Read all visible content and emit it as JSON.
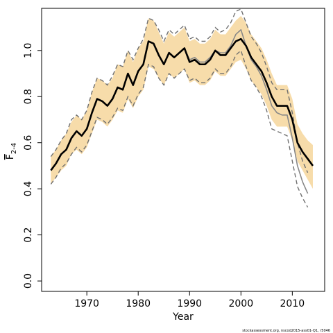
{
  "chart_data": {
    "type": "line",
    "x_label": "Year",
    "y_label": {
      "symbol": "F",
      "subscript": "2-4"
    },
    "footer": "stockassessment.org, nscod2015-ass01-Q1, r5046",
    "x": [
      1963,
      1964,
      1965,
      1966,
      1967,
      1968,
      1969,
      1970,
      1971,
      1972,
      1973,
      1974,
      1975,
      1976,
      1977,
      1978,
      1979,
      1980,
      1981,
      1982,
      1983,
      1984,
      1985,
      1986,
      1987,
      1988,
      1989,
      1990,
      1991,
      1992,
      1993,
      1994,
      1995,
      1996,
      1997,
      1998,
      1999,
      2000,
      2001,
      2002,
      2003,
      2004,
      2005,
      2006,
      2007,
      2008,
      2009,
      2010,
      2011,
      2012,
      2013,
      2014
    ],
    "xlim": [
      1961.2,
      2016.3
    ],
    "xticks": [
      1970,
      1980,
      1990,
      2000,
      2010
    ],
    "ylim": [
      -0.045,
      1.183
    ],
    "yticks": [
      {
        "value": 0,
        "label": "0.0"
      },
      0.2,
      0.4,
      0.6,
      0.8,
      {
        "value": 1,
        "label": "1.0"
      }
    ],
    "series": [
      {
        "color": "#000000",
        "band_color": "#f7dcaa",
        "values": [
          0.48,
          0.51,
          0.55,
          0.57,
          0.62,
          0.65,
          0.63,
          0.66,
          0.73,
          0.79,
          0.78,
          0.76,
          0.79,
          0.84,
          0.83,
          0.9,
          0.85,
          0.91,
          0.94,
          1.04,
          1.03,
          0.98,
          0.94,
          0.99,
          0.97,
          0.99,
          1.01,
          0.95,
          0.96,
          0.94,
          0.94,
          0.96,
          1.0,
          0.98,
          0.98,
          1.01,
          1.04,
          1.05,
          1.02,
          0.97,
          0.94,
          0.91,
          0.86,
          0.8,
          0.76,
          0.76,
          0.76,
          0.7,
          0.6,
          0.56,
          0.53,
          0.5
        ],
        "upper": [
          0.54,
          0.57,
          0.61,
          0.64,
          0.69,
          0.72,
          0.7,
          0.74,
          0.82,
          0.88,
          0.87,
          0.85,
          0.88,
          0.94,
          0.93,
          1.0,
          0.95,
          1.01,
          1.04,
          1.14,
          1.13,
          1.08,
          1.03,
          1.08,
          1.06,
          1.08,
          1.1,
          1.04,
          1.05,
          1.03,
          1.03,
          1.05,
          1.09,
          1.07,
          1.07,
          1.1,
          1.13,
          1.15,
          1.12,
          1.07,
          1.04,
          1.01,
          0.96,
          0.9,
          0.85,
          0.85,
          0.85,
          0.79,
          0.68,
          0.64,
          0.61,
          0.59
        ],
        "lower": [
          0.42,
          0.45,
          0.48,
          0.5,
          0.55,
          0.57,
          0.55,
          0.58,
          0.64,
          0.7,
          0.69,
          0.67,
          0.7,
          0.74,
          0.73,
          0.79,
          0.75,
          0.8,
          0.83,
          0.93,
          0.92,
          0.88,
          0.85,
          0.9,
          0.88,
          0.9,
          0.92,
          0.86,
          0.87,
          0.85,
          0.85,
          0.87,
          0.91,
          0.89,
          0.89,
          0.92,
          0.95,
          0.96,
          0.92,
          0.87,
          0.84,
          0.81,
          0.76,
          0.7,
          0.67,
          0.67,
          0.67,
          0.61,
          0.52,
          0.48,
          0.44,
          0.4
        ]
      },
      {
        "color": "#888888",
        "bound_style": "dashed",
        "bound_color": "#707070",
        "values": [
          0.48,
          0.51,
          0.55,
          0.57,
          0.62,
          0.65,
          0.63,
          0.66,
          0.73,
          0.79,
          0.78,
          0.76,
          0.79,
          0.84,
          0.83,
          0.9,
          0.85,
          0.91,
          0.94,
          1.04,
          1.03,
          0.98,
          0.94,
          0.99,
          0.97,
          0.99,
          1.01,
          0.96,
          0.97,
          0.95,
          0.95,
          0.97,
          1.0,
          0.99,
          0.99,
          1.02,
          1.07,
          1.09,
          1.02,
          0.96,
          0.93,
          0.89,
          0.83,
          0.76,
          0.73,
          0.72,
          0.72,
          0.62,
          0.5,
          0.43,
          0.38,
          null
        ],
        "upper": [
          0.54,
          0.57,
          0.61,
          0.64,
          0.7,
          0.72,
          0.7,
          0.74,
          0.82,
          0.88,
          0.87,
          0.85,
          0.89,
          0.94,
          0.93,
          1.0,
          0.96,
          1.01,
          1.05,
          1.14,
          1.13,
          1.09,
          1.04,
          1.09,
          1.07,
          1.09,
          1.11,
          1.05,
          1.06,
          1.04,
          1.04,
          1.06,
          1.1,
          1.08,
          1.09,
          1.12,
          1.17,
          1.18,
          1.12,
          1.06,
          1.03,
          0.99,
          0.93,
          0.86,
          0.83,
          0.83,
          0.83,
          0.73,
          0.6,
          0.52,
          0.47,
          null
        ],
        "lower": [
          0.42,
          0.45,
          0.49,
          0.51,
          0.55,
          0.58,
          0.56,
          0.59,
          0.65,
          0.71,
          0.7,
          0.68,
          0.71,
          0.75,
          0.74,
          0.8,
          0.76,
          0.81,
          0.84,
          0.94,
          0.93,
          0.88,
          0.85,
          0.9,
          0.88,
          0.9,
          0.92,
          0.87,
          0.88,
          0.86,
          0.86,
          0.88,
          0.92,
          0.9,
          0.9,
          0.93,
          0.98,
          1.0,
          0.93,
          0.87,
          0.84,
          0.8,
          0.74,
          0.66,
          0.65,
          0.64,
          0.63,
          0.52,
          0.41,
          0.36,
          0.32,
          null
        ]
      }
    ]
  }
}
